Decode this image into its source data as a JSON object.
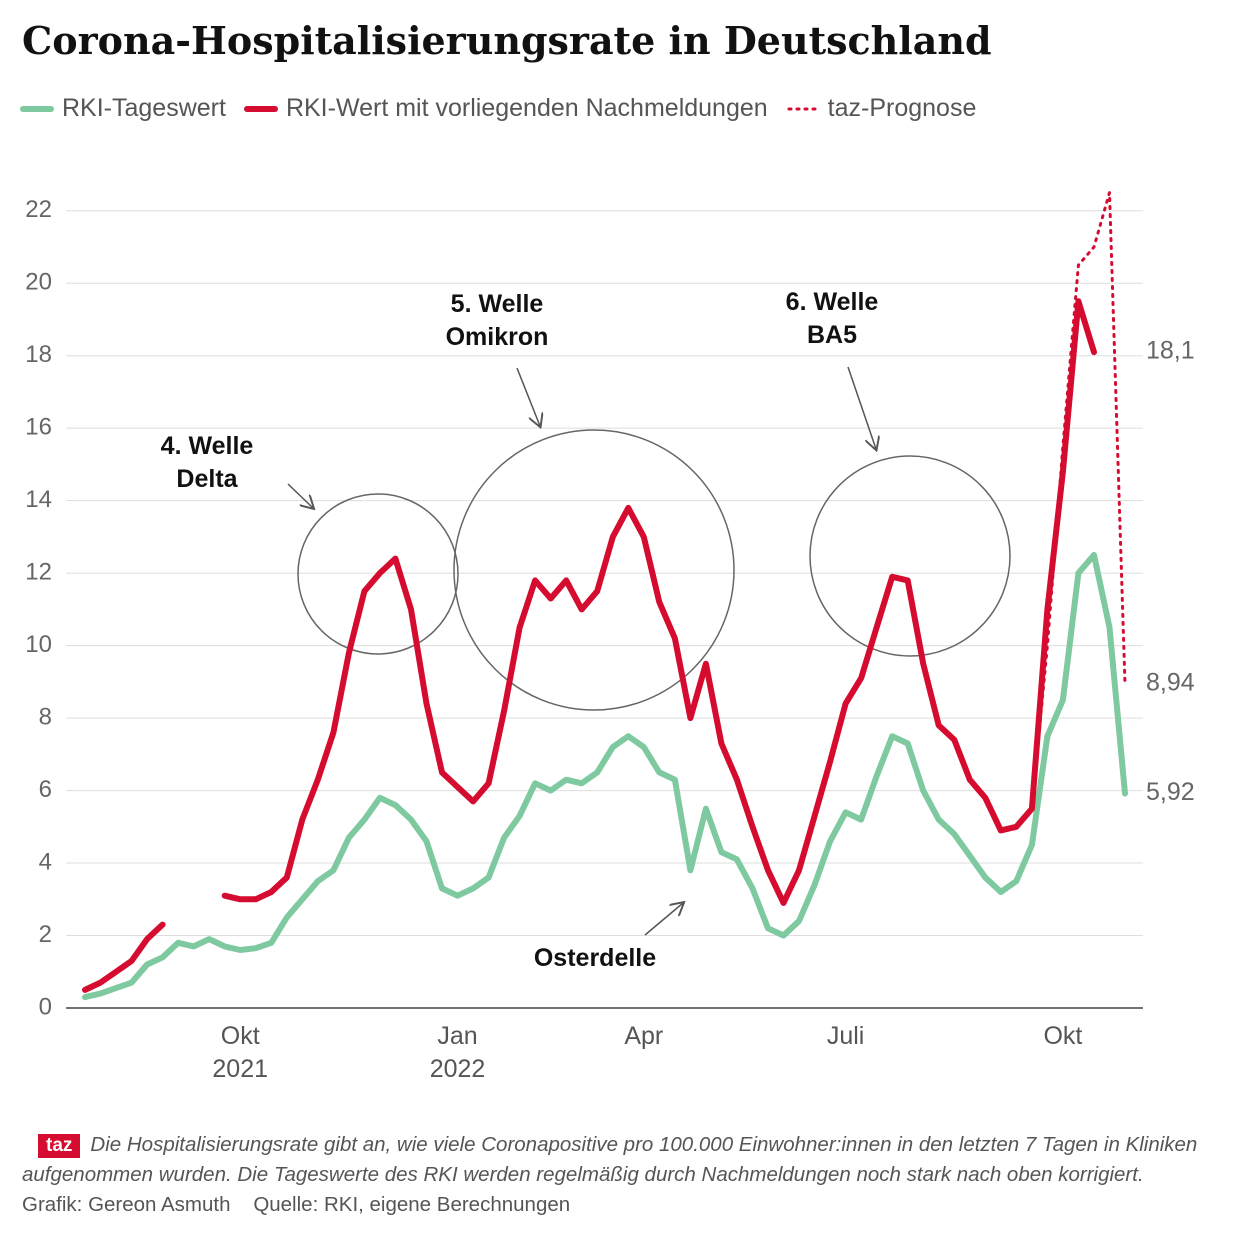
{
  "chart_data": {
    "type": "line",
    "title": "Corona-Hospitalisierungsrate in Deutschland",
    "categories": [
      null,
      null,
      null,
      null,
      null,
      null,
      null,
      null,
      null,
      null,
      "Okt\n2021",
      null,
      null,
      null,
      null,
      null,
      null,
      null,
      null,
      null,
      null,
      null,
      null,
      null,
      "Jan\n2022",
      null,
      null,
      null,
      null,
      null,
      null,
      null,
      null,
      null,
      null,
      null,
      "Apr",
      null,
      null,
      null,
      null,
      null,
      null,
      null,
      null,
      null,
      null,
      null,
      null,
      "Juli",
      null,
      null,
      null,
      null,
      null,
      null,
      null,
      null,
      null,
      null,
      null,
      null,
      null,
      "Okt",
      null,
      null,
      null,
      null
    ],
    "series": [
      {
        "name": "RKI-Tageswert",
        "color": "#7fc9a0",
        "line_style": "solid",
        "values": [
          0.3,
          0.4,
          0.55,
          0.7,
          1.2,
          1.4,
          1.8,
          1.7,
          1.9,
          1.7,
          1.6,
          1.65,
          1.8,
          2.5,
          3.0,
          3.5,
          3.8,
          4.7,
          5.2,
          5.8,
          5.6,
          5.2,
          4.6,
          3.3,
          3.1,
          3.3,
          3.6,
          4.7,
          5.3,
          6.2,
          6.0,
          6.3,
          6.2,
          6.5,
          7.2,
          7.5,
          7.2,
          6.5,
          6.3,
          3.8,
          5.5,
          4.3,
          4.1,
          3.3,
          2.2,
          2.0,
          2.4,
          3.4,
          4.6,
          5.4,
          5.2,
          6.4,
          7.5,
          7.3,
          6.0,
          5.2,
          4.8,
          4.2,
          3.6,
          3.2,
          3.5,
          4.5,
          7.5,
          8.5,
          12.0,
          12.5,
          10.5,
          5.92
        ]
      },
      {
        "name": "RKI-Wert mit vorliegenden Nachmeldungen",
        "color": "#d50c2f",
        "line_style": "solid",
        "values": [
          0.5,
          0.7,
          1.0,
          1.3,
          1.9,
          2.3,
          null,
          null,
          null,
          3.1,
          3.0,
          3.0,
          3.2,
          3.6,
          5.2,
          6.3,
          7.6,
          9.8,
          11.5,
          12.0,
          12.4,
          11.0,
          8.4,
          6.5,
          6.1,
          5.7,
          6.2,
          8.2,
          10.5,
          11.8,
          11.3,
          11.8,
          11.0,
          11.5,
          13.0,
          13.8,
          13.0,
          11.2,
          10.2,
          8.0,
          9.5,
          7.3,
          6.3,
          5.0,
          3.8,
          2.9,
          3.8,
          5.3,
          6.8,
          8.4,
          9.1,
          10.5,
          11.9,
          11.8,
          9.5,
          7.8,
          7.4,
          6.3,
          5.8,
          4.9,
          5.0,
          5.5,
          11.0,
          14.8,
          19.5,
          18.1,
          null,
          null
        ]
      },
      {
        "name": "taz-Prognose",
        "color": "#d50c2f",
        "line_style": "dotted",
        "values": [
          null,
          null,
          null,
          null,
          null,
          null,
          null,
          null,
          null,
          null,
          null,
          null,
          null,
          null,
          null,
          null,
          null,
          null,
          null,
          null,
          null,
          null,
          null,
          null,
          null,
          null,
          null,
          null,
          null,
          null,
          null,
          null,
          null,
          null,
          null,
          null,
          null,
          null,
          null,
          null,
          null,
          null,
          null,
          null,
          null,
          null,
          null,
          null,
          null,
          null,
          null,
          null,
          null,
          null,
          null,
          null,
          null,
          null,
          null,
          null,
          null,
          5.5,
          10.0,
          15.5,
          20.5,
          21.0,
          22.5,
          8.94
        ]
      }
    ],
    "ylim": [
      0,
      23.4
    ],
    "yticks": [
      0,
      2,
      4,
      6,
      8,
      10,
      12,
      14,
      16,
      18,
      20,
      22
    ],
    "grid": true,
    "end_labels": [
      {
        "value": 18.1,
        "label": "18,1"
      },
      {
        "value": 8.94,
        "label": "8,94"
      },
      {
        "value": 5.92,
        "label": "5,92"
      }
    ],
    "annotations": [
      "4. Welle\nDelta",
      "5. Welle\nOmikron",
      "6. Welle\nBA5",
      "Osterdelle"
    ],
    "logo": "taz",
    "note": "Die Hospitalisierungsrate gibt an, wie viele Coronapositive pro 100.000 Einwohner:innen in den letzten 7 Tagen in Kliniken aufgenommen wurden. Die Tageswerte des RKI werden regelmäßig durch Nachmeldungen noch stark nach oben korrigiert.",
    "credit": "Grafik: Gereon Asmuth",
    "source": "Quelle: RKI, eigene Berechnungen"
  }
}
